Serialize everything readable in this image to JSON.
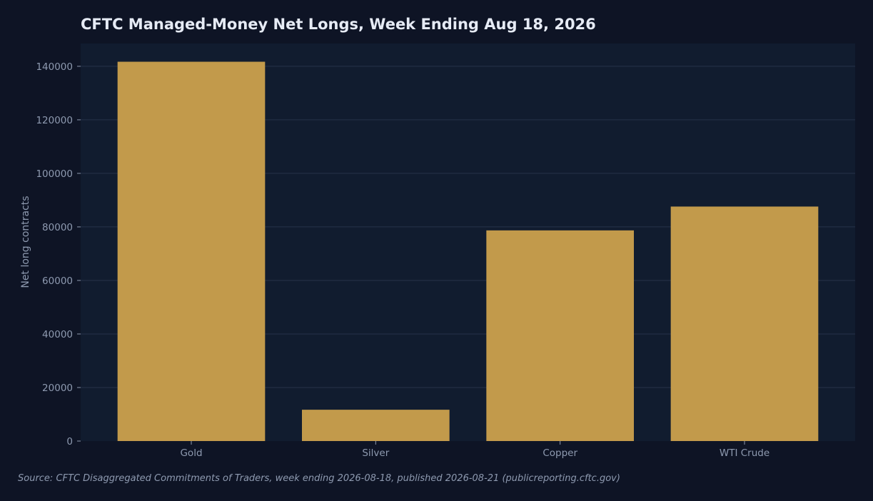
{
  "chart_data": {
    "type": "bar",
    "title": "CFTC Managed-Money Net Longs, Week Ending Aug 18, 2026",
    "xlabel": "",
    "ylabel": "Net long contracts",
    "categories": [
      "Gold",
      "Silver",
      "Copper",
      "WTI Crude"
    ],
    "values": [
      141700,
      11700,
      78700,
      87600
    ],
    "ylim": [
      0,
      148500
    ],
    "yticks": [
      0,
      20000,
      40000,
      60000,
      80000,
      100000,
      120000,
      140000
    ],
    "grid": true,
    "legend": "none",
    "source": "Source: CFTC Disaggregated Commitments of Traders, week ending 2026-08-18, published 2026-08-21 (publicreporting.cftc.gov)"
  },
  "colors": {
    "background": "#0e1425",
    "plot_background": "#111c2f",
    "bar": "#c29a4b",
    "grid": "#27324a",
    "text": "#8e9ab0",
    "title": "#e6ebf5"
  }
}
